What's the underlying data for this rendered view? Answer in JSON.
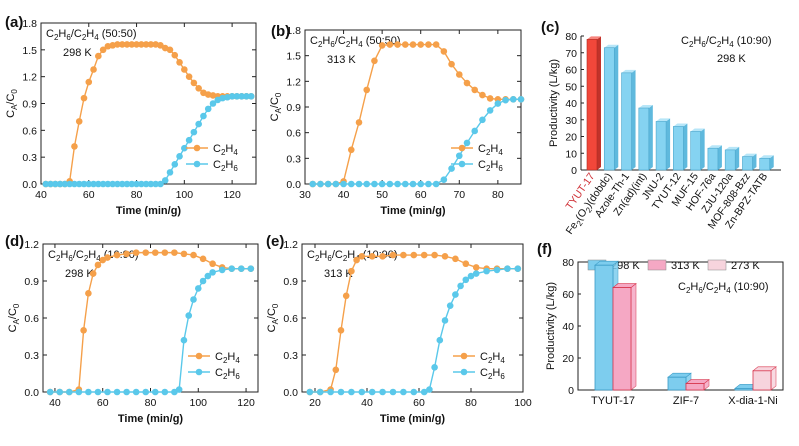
{
  "figure": "Breakthrough curves and productivity",
  "chart_data": [
    {
      "id": "a",
      "label": "(a)",
      "type": "line",
      "annotation": "C₂H₆/C₂H₄ (50:50)",
      "temp": "298 K",
      "xlabel": "Time (min/g)",
      "ylabel": "CA/C0",
      "xlim": [
        40,
        130
      ],
      "ylim": [
        0,
        1.8
      ],
      "xticks": [
        40,
        60,
        80,
        100,
        120
      ],
      "yticks": [
        0.0,
        0.3,
        0.6,
        0.9,
        1.2,
        1.5,
        1.8
      ],
      "ytick_labels": [
        "0.0",
        "0.3",
        "0.6",
        "0.9",
        "1.2",
        "1.5",
        "1.8"
      ],
      "series": [
        {
          "name": "C₂H₄",
          "color": "#f5a04a",
          "x": [
            42,
            44,
            46,
            48,
            50,
            52,
            54,
            56,
            58,
            60,
            62,
            64,
            66,
            68,
            70,
            72,
            74,
            76,
            78,
            80,
            82,
            84,
            86,
            88,
            90,
            92,
            94,
            96,
            98,
            100,
            102,
            104,
            106,
            108,
            110,
            112,
            114,
            116,
            118,
            120,
            122,
            124,
            126,
            128
          ],
          "y": [
            0,
            0,
            0,
            0,
            0,
            0.03,
            0.42,
            0.7,
            0.96,
            1.14,
            1.28,
            1.43,
            1.5,
            1.54,
            1.55,
            1.56,
            1.56,
            1.56,
            1.56,
            1.56,
            1.56,
            1.56,
            1.56,
            1.56,
            1.55,
            1.52,
            1.5,
            1.44,
            1.36,
            1.28,
            1.2,
            1.13,
            1.07,
            1.02,
            1.0,
            0.99,
            0.98,
            0.98,
            0.98,
            0.98,
            0.98,
            0.98,
            0.98,
            0.98
          ]
        },
        {
          "name": "C₂H₆",
          "color": "#5ac8ea",
          "x": [
            42,
            44,
            46,
            48,
            50,
            52,
            54,
            56,
            58,
            60,
            62,
            64,
            66,
            68,
            70,
            72,
            74,
            76,
            78,
            80,
            82,
            84,
            86,
            88,
            90,
            92,
            94,
            96,
            98,
            100,
            102,
            104,
            106,
            108,
            110,
            112,
            114,
            116,
            118,
            120,
            122,
            124,
            126,
            128
          ],
          "y": [
            0,
            0,
            0,
            0,
            0,
            0,
            0,
            0,
            0,
            0,
            0,
            0,
            0,
            0,
            0,
            0,
            0,
            0,
            0,
            0,
            0,
            0,
            0,
            0,
            0,
            0.04,
            0.13,
            0.22,
            0.31,
            0.4,
            0.49,
            0.58,
            0.67,
            0.76,
            0.84,
            0.9,
            0.94,
            0.96,
            0.97,
            0.98,
            0.98,
            0.98,
            0.98,
            0.98
          ]
        }
      ]
    },
    {
      "id": "b",
      "label": "(b)",
      "type": "line",
      "annotation": "C₂H₆/C₂H₄ (50:50)",
      "temp": "313 K",
      "xlabel": "Time (min/g)",
      "ylabel": "CA/C0",
      "xlim": [
        30,
        86
      ],
      "ylim": [
        0,
        1.8
      ],
      "xticks": [
        30,
        40,
        50,
        60,
        70,
        80
      ],
      "yticks": [
        0.0,
        0.3,
        0.6,
        0.9,
        1.2,
        1.5,
        1.8
      ],
      "ytick_labels": [
        "0.0",
        "0.3",
        "0.6",
        "0.9",
        "1.2",
        "1.5",
        "1.8"
      ],
      "series": [
        {
          "name": "C₂H₄",
          "color": "#f5a04a",
          "x": [
            32,
            34,
            36,
            38,
            40,
            42,
            44,
            46,
            48,
            50,
            52,
            54,
            56,
            58,
            60,
            62,
            64,
            66,
            68,
            70,
            72,
            74,
            76,
            78,
            80,
            82,
            84,
            86
          ],
          "y": [
            0,
            0,
            0,
            0,
            0.03,
            0.4,
            0.72,
            1.1,
            1.44,
            1.62,
            1.63,
            1.63,
            1.63,
            1.63,
            1.63,
            1.63,
            1.63,
            1.55,
            1.4,
            1.28,
            1.18,
            1.1,
            1.04,
            1.0,
            0.99,
            0.99,
            0.99,
            0.99
          ]
        },
        {
          "name": "C₂H₆",
          "color": "#5ac8ea",
          "x": [
            32,
            34,
            36,
            38,
            40,
            42,
            44,
            46,
            48,
            50,
            52,
            54,
            56,
            58,
            60,
            62,
            64,
            66,
            68,
            70,
            72,
            74,
            76,
            78,
            80,
            82,
            84,
            86
          ],
          "y": [
            0,
            0,
            0,
            0,
            0,
            0,
            0,
            0,
            0,
            0,
            0,
            0,
            0,
            0,
            0,
            0,
            0,
            0.05,
            0.18,
            0.33,
            0.48,
            0.62,
            0.75,
            0.86,
            0.94,
            0.98,
            0.99,
            0.99
          ]
        }
      ]
    },
    {
      "id": "c",
      "label": "(c)",
      "type": "bar",
      "annotation": "C₂H₆/C₂H₄ (10:90)",
      "temp": "298 K",
      "ylabel": "Productivity (L/kg)",
      "ylim": [
        0,
        80
      ],
      "yticks": [
        0,
        10,
        20,
        30,
        40,
        50,
        60,
        70,
        80
      ],
      "categories": [
        "TYUT-17",
        "Fe₂(O₂)(dobdc)",
        "Azole-Th-1",
        "Zn(ad)(int)",
        "JNU-2",
        "TYUT-12",
        "MUF-15",
        "HOF-76a",
        "ZJU-120a",
        "MOF-808-Bzz",
        "Zn-BPZ-TATB"
      ],
      "values": [
        78,
        73,
        58,
        37,
        29,
        26,
        23,
        13,
        12,
        8,
        7
      ],
      "highlight_color": "#f2473a",
      "bar_color": "#85d3f1",
      "highlight_label_color": "#d0343a"
    },
    {
      "id": "d",
      "label": "(d)",
      "type": "line",
      "annotation": "C₂H₆/C₂H₄ (10:90)",
      "temp": "298 K",
      "xlabel": "Time (min/g)",
      "ylabel": "CA/C0",
      "xlim": [
        35,
        125
      ],
      "ylim": [
        0,
        1.2
      ],
      "xticks": [
        40,
        60,
        80,
        100,
        120
      ],
      "yticks": [
        0.0,
        0.3,
        0.6,
        0.9,
        1.2
      ],
      "ytick_labels": [
        "0.0",
        "0.3",
        "0.6",
        "0.9",
        "1.2"
      ],
      "series": [
        {
          "name": "C₂H₄",
          "color": "#f5a04a",
          "x": [
            38,
            42,
            46,
            50,
            52,
            54,
            56,
            58,
            60,
            62,
            66,
            70,
            74,
            78,
            82,
            86,
            90,
            94,
            98,
            102,
            106,
            110,
            114,
            118,
            122
          ],
          "y": [
            0,
            0,
            0,
            0.02,
            0.5,
            0.8,
            0.96,
            1.03,
            1.07,
            1.09,
            1.11,
            1.12,
            1.13,
            1.13,
            1.13,
            1.13,
            1.13,
            1.12,
            1.11,
            1.08,
            1.04,
            1.01,
            1.0,
            1.0,
            1.0
          ]
        },
        {
          "name": "C₂H₆",
          "color": "#5ac8ea",
          "x": [
            38,
            42,
            46,
            50,
            54,
            58,
            62,
            66,
            70,
            74,
            78,
            82,
            86,
            90,
            92,
            94,
            96,
            98,
            100,
            102,
            104,
            106,
            110,
            114,
            118,
            122
          ],
          "y": [
            0,
            0,
            0,
            0,
            0,
            0,
            0,
            0,
            0,
            0,
            0,
            0,
            0,
            0,
            0.02,
            0.42,
            0.62,
            0.75,
            0.84,
            0.9,
            0.94,
            0.97,
            0.99,
            1.0,
            1.0,
            1.0
          ]
        }
      ]
    },
    {
      "id": "e",
      "label": "(e)",
      "type": "line",
      "annotation": "C₂H₆/C₂H₄ (10:90)",
      "temp": "313 K",
      "xlabel": "Time (min/g)",
      "ylabel": "CA/C0",
      "xlim": [
        15,
        100
      ],
      "ylim": [
        0,
        1.2
      ],
      "xticks": [
        20,
        40,
        60,
        80,
        100
      ],
      "yticks": [
        0.0,
        0.3,
        0.6,
        0.9,
        1.2
      ],
      "ytick_labels": [
        "0.0",
        "0.3",
        "0.6",
        "0.9",
        "1.2"
      ],
      "series": [
        {
          "name": "C₂H₄",
          "color": "#f5a04a",
          "x": [
            18,
            22,
            26,
            28,
            30,
            32,
            34,
            36,
            38,
            42,
            46,
            50,
            54,
            58,
            62,
            66,
            70,
            74,
            78,
            82,
            86,
            90,
            94,
            98
          ],
          "y": [
            0,
            0,
            0.02,
            0.18,
            0.5,
            0.78,
            0.98,
            1.07,
            1.1,
            1.1,
            1.1,
            1.11,
            1.11,
            1.11,
            1.11,
            1.11,
            1.1,
            1.08,
            1.04,
            1.01,
            1.0,
            1.0,
            1.0,
            1.0
          ]
        },
        {
          "name": "C₂H₆",
          "color": "#5ac8ea",
          "x": [
            18,
            22,
            26,
            30,
            34,
            38,
            42,
            46,
            50,
            54,
            58,
            62,
            64,
            66,
            68,
            70,
            72,
            74,
            76,
            78,
            80,
            82,
            86,
            90,
            94,
            98
          ],
          "y": [
            0,
            0,
            0,
            0,
            0,
            0,
            0,
            0,
            0,
            0,
            0,
            0,
            0.02,
            0.2,
            0.42,
            0.58,
            0.7,
            0.79,
            0.86,
            0.91,
            0.94,
            0.96,
            0.98,
            0.99,
            1.0,
            1.0
          ]
        }
      ]
    },
    {
      "id": "f",
      "label": "(f)",
      "type": "bar",
      "annotation": "C₂H₆/C₂H₄ (10:90)",
      "ylabel": "Productivity (L/kg)",
      "ylim": [
        0,
        80
      ],
      "yticks": [
        0,
        20,
        40,
        60,
        80
      ],
      "categories": [
        "TYUT-17",
        "ZIF-7",
        "X-dia-1-Ni"
      ],
      "series": [
        {
          "name": "298 K",
          "color": "#7dcdee",
          "values": [
            78,
            8,
            1
          ]
        },
        {
          "name": "313 K",
          "color": "#f5a8c4",
          "values": [
            64,
            4,
            0
          ]
        },
        {
          "name": "273 K",
          "color": "#f7d4dd",
          "values": [
            0,
            0,
            12
          ]
        }
      ]
    }
  ]
}
